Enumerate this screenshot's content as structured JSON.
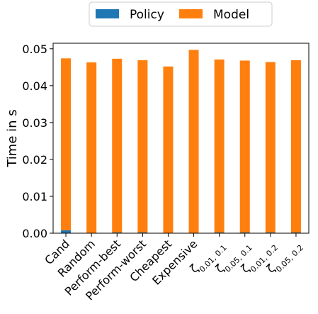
{
  "chart_data": {
    "type": "bar",
    "stacked": true,
    "categories": [
      "Cand",
      "Random",
      "Perform-best",
      "Perform-worst",
      "Cheapest",
      "Expensive",
      "ζ0.01, 0.1",
      "ζ0.05, 0.1",
      "ζ0.01, 0.2",
      "ζ0.05, 0.2"
    ],
    "category_labels": [
      {
        "base": "Cand",
        "sub": ""
      },
      {
        "base": "Random",
        "sub": ""
      },
      {
        "base": "Perform-best",
        "sub": ""
      },
      {
        "base": "Perform-worst",
        "sub": ""
      },
      {
        "base": "Cheapest",
        "sub": ""
      },
      {
        "base": "Expensive",
        "sub": ""
      },
      {
        "base": "ζ",
        "sub": "0.01, 0.1"
      },
      {
        "base": "ζ",
        "sub": "0.05, 0.1"
      },
      {
        "base": "ζ",
        "sub": "0.01, 0.2"
      },
      {
        "base": "ζ",
        "sub": "0.05, 0.2"
      }
    ],
    "series": [
      {
        "name": "Policy",
        "color": "#1f77b4",
        "values": [
          0.0008,
          0.0001,
          0.0002,
          0.0002,
          0.0001,
          0.0001,
          0.0002,
          0.0002,
          0.0002,
          0.0002
        ]
      },
      {
        "name": "Model",
        "color": "#ff7f0e",
        "values": [
          0.0466,
          0.0462,
          0.0471,
          0.0467,
          0.0451,
          0.0496,
          0.0469,
          0.0466,
          0.0462,
          0.0467
        ]
      }
    ],
    "xlabel": "",
    "ylabel": "Time in s",
    "ylim": [
      0,
      0.0515
    ],
    "yticks": [
      0.0,
      0.01,
      0.02,
      0.03,
      0.04,
      0.05
    ],
    "ytick_labels": [
      "0.00",
      "0.01",
      "0.02",
      "0.03",
      "0.04",
      "0.05"
    ],
    "legend_position": "top-center",
    "grid": false
  }
}
